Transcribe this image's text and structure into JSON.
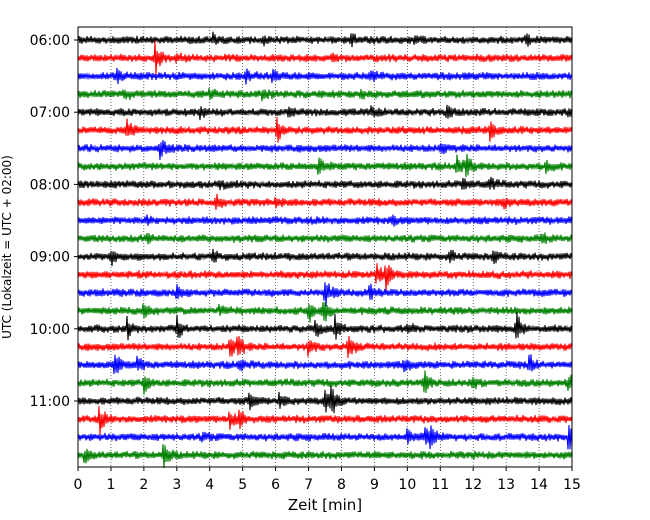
{
  "chart_data": {
    "type": "line",
    "title": "",
    "xlabel": "Zeit  [min]",
    "ylabel": "UTC (Lokalzeit = UTC + 02:00)",
    "xlim": [
      0,
      15
    ],
    "x_ticks": [
      "0",
      "1",
      "2",
      "3",
      "4",
      "5",
      "6",
      "7",
      "8",
      "9",
      "10",
      "11",
      "12",
      "13",
      "14",
      "15"
    ],
    "y_ticks": [
      "06:00",
      "07:00",
      "08:00",
      "09:00",
      "10:00",
      "11:00"
    ],
    "grid": "vertical dotted lines at each minute",
    "trace_colors": [
      "#000000",
      "#ff0000",
      "#0000ff",
      "#008000"
    ],
    "trace_interval_min": 15,
    "traces": [
      {
        "start": "06:00",
        "events": [
          {
            "t": 4.1,
            "a": 0.35
          },
          {
            "t": 5.6,
            "a": 0.3
          },
          {
            "t": 8.3,
            "a": 0.35
          },
          {
            "t": 10.2,
            "a": 0.3
          },
          {
            "t": 13.6,
            "a": 0.3
          }
        ]
      },
      {
        "start": "06:15",
        "events": [
          {
            "t": 2.35,
            "a": 1.3
          },
          {
            "t": 3.0,
            "a": 0.3
          },
          {
            "t": 7.7,
            "a": 0.3
          }
        ]
      },
      {
        "start": "06:30",
        "events": [
          {
            "t": 1.2,
            "a": 0.45
          },
          {
            "t": 5.1,
            "a": 0.45
          },
          {
            "t": 5.9,
            "a": 0.35
          },
          {
            "t": 8.9,
            "a": 0.3
          }
        ]
      },
      {
        "start": "06:45",
        "events": [
          {
            "t": 1.4,
            "a": 0.5
          },
          {
            "t": 4.0,
            "a": 0.35
          },
          {
            "t": 5.6,
            "a": 0.5
          },
          {
            "t": 8.6,
            "a": 0.3
          }
        ]
      },
      {
        "start": "07:00",
        "events": [
          {
            "t": 3.7,
            "a": 0.5
          },
          {
            "t": 6.4,
            "a": 0.35
          },
          {
            "t": 8.9,
            "a": 0.4
          },
          {
            "t": 11.2,
            "a": 0.4
          },
          {
            "t": 14.9,
            "a": 0.4
          }
        ]
      },
      {
        "start": "07:15",
        "events": [
          {
            "t": 1.5,
            "a": 0.9
          },
          {
            "t": 6.05,
            "a": 0.8
          },
          {
            "t": 12.5,
            "a": 0.8
          }
        ]
      },
      {
        "start": "07:30",
        "events": [
          {
            "t": 2.5,
            "a": 0.8
          },
          {
            "t": 11.0,
            "a": 0.45
          }
        ]
      },
      {
        "start": "07:45",
        "events": [
          {
            "t": 7.3,
            "a": 0.6
          },
          {
            "t": 11.5,
            "a": 0.9
          },
          {
            "t": 11.8,
            "a": 0.8
          },
          {
            "t": 14.2,
            "a": 0.45
          }
        ]
      },
      {
        "start": "08:00",
        "events": [
          {
            "t": 4.3,
            "a": 0.3
          },
          {
            "t": 11.7,
            "a": 0.6
          },
          {
            "t": 12.5,
            "a": 0.5
          }
        ]
      },
      {
        "start": "08:15",
        "events": [
          {
            "t": 4.2,
            "a": 0.55
          },
          {
            "t": 6.0,
            "a": 0.3
          },
          {
            "t": 12.9,
            "a": 0.4
          }
        ]
      },
      {
        "start": "08:30",
        "events": [
          {
            "t": 2.1,
            "a": 0.3
          },
          {
            "t": 9.5,
            "a": 0.3
          }
        ]
      },
      {
        "start": "08:45",
        "events": [
          {
            "t": 2.1,
            "a": 0.3
          },
          {
            "t": 14.1,
            "a": 0.35
          }
        ]
      },
      {
        "start": "09:00",
        "events": [
          {
            "t": 1.0,
            "a": 0.65
          },
          {
            "t": 4.1,
            "a": 0.35
          },
          {
            "t": 11.3,
            "a": 0.5
          },
          {
            "t": 12.6,
            "a": 0.4
          }
        ]
      },
      {
        "start": "09:15",
        "events": [
          {
            "t": 9.05,
            "a": 0.9
          },
          {
            "t": 9.35,
            "a": 0.9
          }
        ]
      },
      {
        "start": "09:30",
        "events": [
          {
            "t": 3.0,
            "a": 0.6
          },
          {
            "t": 7.5,
            "a": 1.2
          },
          {
            "t": 8.85,
            "a": 0.6
          }
        ]
      },
      {
        "start": "09:45",
        "events": [
          {
            "t": 2.0,
            "a": 0.8
          },
          {
            "t": 4.3,
            "a": 0.4
          },
          {
            "t": 7.0,
            "a": 0.8
          },
          {
            "t": 7.45,
            "a": 1.1
          }
        ]
      },
      {
        "start": "10:00",
        "events": [
          {
            "t": 1.5,
            "a": 0.9
          },
          {
            "t": 3.0,
            "a": 0.9
          },
          {
            "t": 7.2,
            "a": 0.8
          },
          {
            "t": 7.8,
            "a": 0.8
          },
          {
            "t": 10.0,
            "a": 0.4
          },
          {
            "t": 13.3,
            "a": 1.3
          }
        ]
      },
      {
        "start": "10:15",
        "events": [
          {
            "t": 4.6,
            "a": 0.9
          },
          {
            "t": 4.85,
            "a": 0.9
          },
          {
            "t": 7.0,
            "a": 0.8
          },
          {
            "t": 8.2,
            "a": 1.2
          }
        ]
      },
      {
        "start": "10:30",
        "events": [
          {
            "t": 1.1,
            "a": 0.9
          },
          {
            "t": 1.8,
            "a": 0.6
          },
          {
            "t": 4.9,
            "a": 0.5
          },
          {
            "t": 9.9,
            "a": 0.5
          },
          {
            "t": 13.7,
            "a": 0.7
          }
        ]
      },
      {
        "start": "10:45",
        "events": [
          {
            "t": 2.0,
            "a": 0.7
          },
          {
            "t": 10.5,
            "a": 0.9
          },
          {
            "t": 12.0,
            "a": 0.4
          },
          {
            "t": 14.9,
            "a": 0.7
          }
        ]
      },
      {
        "start": "11:00",
        "events": [
          {
            "t": 5.2,
            "a": 0.6
          },
          {
            "t": 6.1,
            "a": 0.5
          },
          {
            "t": 7.5,
            "a": 1.0
          },
          {
            "t": 7.7,
            "a": 1.0
          }
        ]
      },
      {
        "start": "11:15",
        "events": [
          {
            "t": 0.65,
            "a": 1.0
          },
          {
            "t": 4.6,
            "a": 0.8
          },
          {
            "t": 4.9,
            "a": 0.8
          }
        ]
      },
      {
        "start": "11:30",
        "events": [
          {
            "t": 3.8,
            "a": 0.35
          },
          {
            "t": 10.0,
            "a": 0.5
          },
          {
            "t": 10.55,
            "a": 0.7
          },
          {
            "t": 10.7,
            "a": 0.9
          },
          {
            "t": 14.9,
            "a": 1.1
          }
        ]
      },
      {
        "start": "11:45",
        "events": [
          {
            "t": 0.2,
            "a": 0.5
          },
          {
            "t": 2.6,
            "a": 1.1
          }
        ]
      }
    ]
  }
}
